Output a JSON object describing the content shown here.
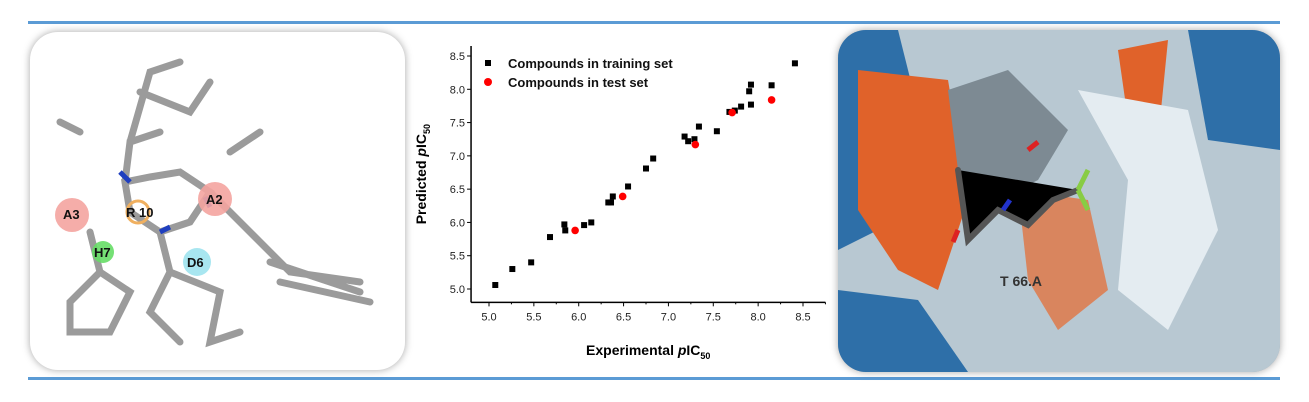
{
  "left_panel": {
    "labels": {
      "a3": "A3",
      "r10": "R 10",
      "a2": "A2",
      "h7": "H7",
      "d6": "D6"
    }
  },
  "right_panel": {
    "residue_label": "T 66.A"
  },
  "colors": {
    "training": "#000000",
    "test": "#ff0000",
    "rule": "#5b9bd5"
  },
  "chart_data": {
    "type": "scatter",
    "xlabel": "Experimental pIC50",
    "ylabel": "Predicted pIC50",
    "xlabel_parts": {
      "main": "Experimental ",
      "italic": "p",
      "rest": "IC",
      "sub": "50"
    },
    "ylabel_parts": {
      "main": "Predicted ",
      "italic": "p",
      "rest": "IC",
      "sub": "50"
    },
    "xlim": [
      4.8,
      8.75
    ],
    "ylim": [
      4.8,
      8.65
    ],
    "xticks": [
      "5.0",
      "5.5",
      "6.0",
      "6.5",
      "7.0",
      "7.5",
      "8.0",
      "8.5"
    ],
    "yticks": [
      "5.0",
      "5.5",
      "6.0",
      "6.5",
      "7.0",
      "7.5",
      "8.0",
      "8.5"
    ],
    "legend_position": "top-left",
    "series": [
      {
        "name": "Compounds in training set",
        "marker": "square",
        "x": [
          5.07,
          5.26,
          5.47,
          5.68,
          5.84,
          5.85,
          6.06,
          6.14,
          6.33,
          6.36,
          6.38,
          6.55,
          6.75,
          6.83,
          7.18,
          7.22,
          7.29,
          7.34,
          7.54,
          7.68,
          7.74,
          7.81,
          7.9,
          7.92,
          7.92,
          8.15,
          8.41
        ],
        "y": [
          5.06,
          5.3,
          5.4,
          5.78,
          5.97,
          5.88,
          5.96,
          6.0,
          6.3,
          6.3,
          6.39,
          6.54,
          6.81,
          6.96,
          7.29,
          7.22,
          7.25,
          7.44,
          7.37,
          7.66,
          7.68,
          7.74,
          7.97,
          8.07,
          7.77,
          8.06,
          8.39
        ]
      },
      {
        "name": "Compounds in test set",
        "marker": "circle",
        "x": [
          5.96,
          6.49,
          7.3,
          7.71,
          8.15
        ],
        "y": [
          5.88,
          6.39,
          7.17,
          7.65,
          7.84
        ]
      }
    ]
  }
}
